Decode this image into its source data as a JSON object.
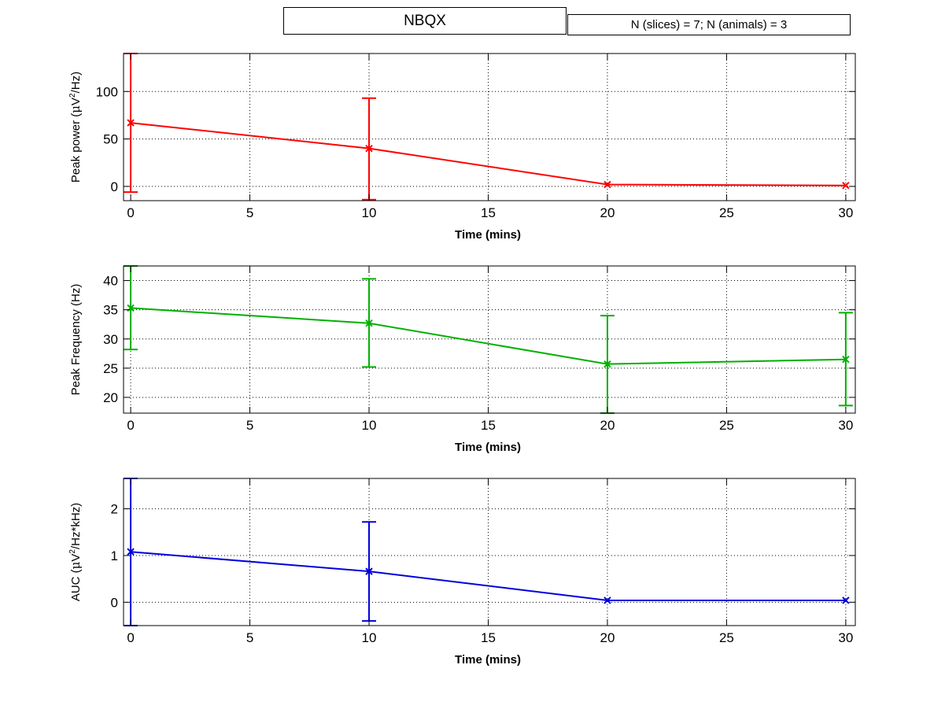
{
  "header": {
    "title": "NBQX",
    "n_label": "N (slices) = 7;  N (animals) = 3"
  },
  "chart_data": [
    {
      "type": "line",
      "xlabel": "Time (mins)",
      "ylabel_pre": "Peak power (",
      "ylabel_mu": "μ",
      "ylabel_mid": "V",
      "ylabel_sup": "2",
      "ylabel_post": "/Hz)",
      "color": "#ff0000",
      "x": [
        0,
        10,
        20,
        30
      ],
      "y": [
        67,
        40,
        2,
        1
      ],
      "err_low": [
        -6,
        -14,
        0,
        0
      ],
      "err_high": [
        140,
        93,
        0,
        0
      ],
      "xlim": [
        -0.3,
        30.4
      ],
      "ylim": [
        -15,
        140
      ],
      "xticks": [
        0,
        5,
        10,
        15,
        20,
        25,
        30
      ],
      "yticks": [
        0,
        50,
        100
      ],
      "grid": true
    },
    {
      "type": "line",
      "xlabel": "Time (mins)",
      "ylabel_pre": "Peak Frequency (Hz)",
      "color": "#00b000",
      "x": [
        0,
        10,
        20,
        30
      ],
      "y": [
        35.3,
        32.7,
        25.7,
        26.5
      ],
      "err_low": [
        28.2,
        25.2,
        17.3,
        18.6
      ],
      "err_high": [
        42.5,
        40.3,
        34.0,
        34.5
      ],
      "xlim": [
        -0.3,
        30.4
      ],
      "ylim": [
        17.3,
        42.5
      ],
      "xticks": [
        0,
        5,
        10,
        15,
        20,
        25,
        30
      ],
      "yticks": [
        20,
        25,
        30,
        35,
        40
      ],
      "grid": true
    },
    {
      "type": "line",
      "xlabel": "Time (mins)",
      "ylabel_pre": "AUC (",
      "ylabel_mu": "μ",
      "ylabel_mid": "V",
      "ylabel_sup": "2",
      "ylabel_post": "/Hz*kHz)",
      "color": "#0000dd",
      "x": [
        0,
        10,
        20,
        30
      ],
      "y": [
        1.08,
        0.66,
        0.04,
        0.04
      ],
      "err_low": [
        -0.5,
        -0.4,
        0.04,
        0.04
      ],
      "err_high": [
        2.65,
        1.72,
        0.04,
        0.04
      ],
      "xlim": [
        -0.3,
        30.4
      ],
      "ylim": [
        -0.5,
        2.65
      ],
      "xticks": [
        0,
        5,
        10,
        15,
        20,
        25,
        30
      ],
      "yticks": [
        0,
        1,
        2
      ],
      "grid": true
    }
  ]
}
